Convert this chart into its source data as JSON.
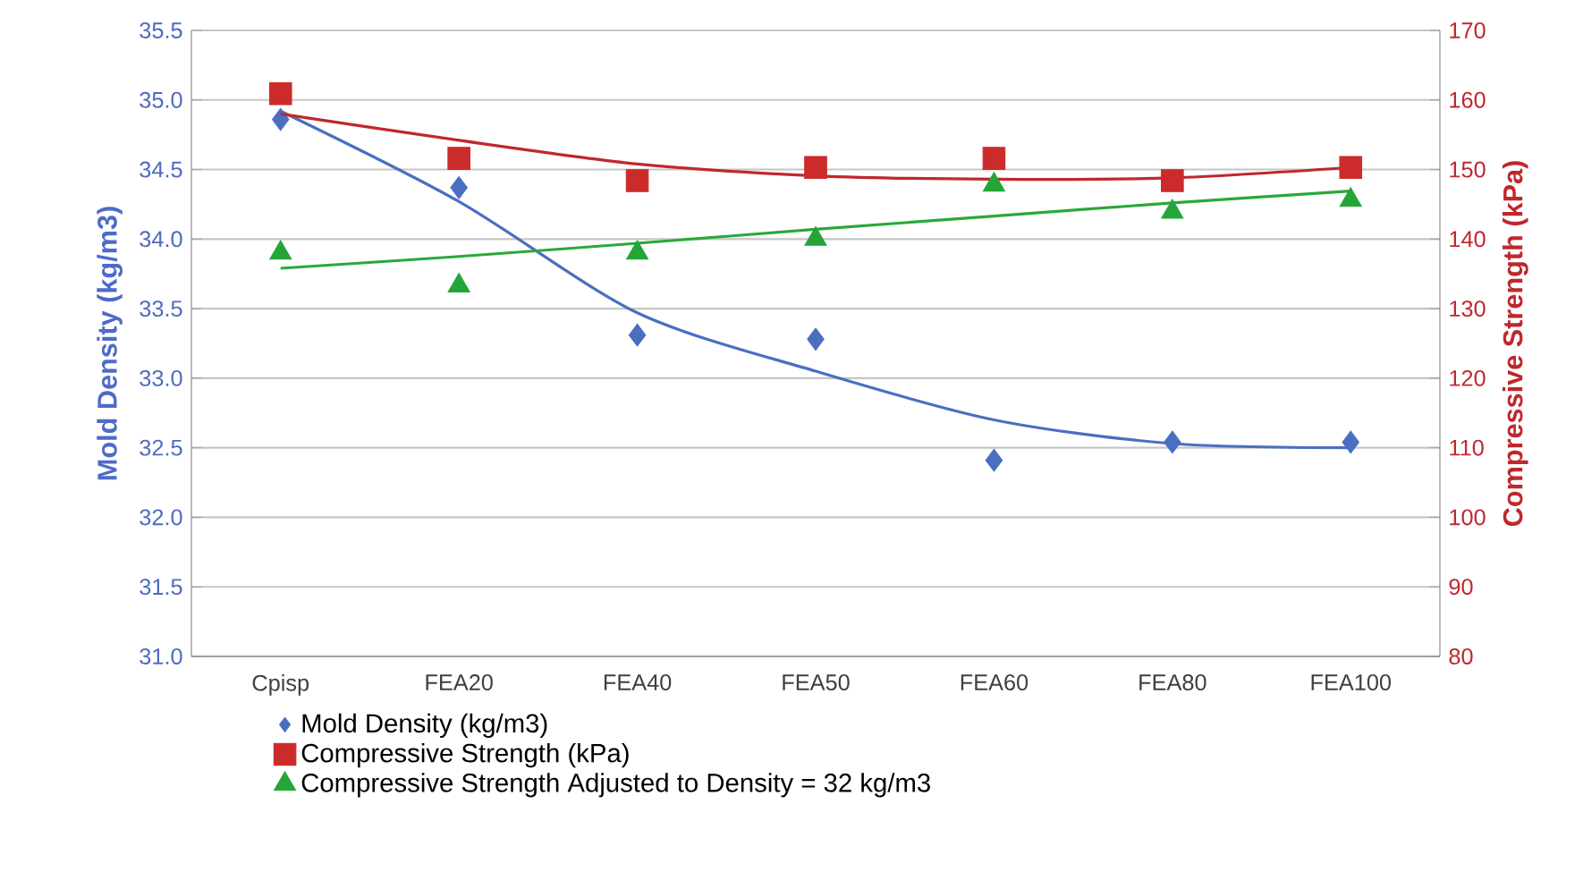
{
  "chart_data": {
    "type": "scatter",
    "xlabel": null,
    "ylabel": "Mold Density (kg/m3)",
    "y2label": "Compressive Strength (kPa)",
    "categories": [
      "Cpisp",
      "FEA20",
      "FEA40",
      "FEA50",
      "FEA60",
      "FEA80",
      "FEA100"
    ],
    "series": [
      {
        "name": "Mold Density (kg/m3)",
        "marker": "diamond",
        "color": "#4a6fc1",
        "values": [
          34.86,
          34.37,
          33.31,
          33.28,
          32.41,
          32.54,
          32.54
        ]
      },
      {
        "name": "Compressive  Strength (kPa)",
        "marker": "square",
        "color": "#cc2b2b",
        "axis": "y2",
        "values": [
          160.9,
          151.6,
          148.4,
          150.3,
          151.6,
          148.4,
          150.3
        ]
      },
      {
        "name": "Compressive Strength Adjusted to Density = 32 kg/m3",
        "marker": "triangle",
        "color": "#25a538",
        "axis": "y2",
        "values": [
          138.0,
          133.3,
          138.0,
          140.0,
          147.8,
          143.9,
          145.6
        ]
      },
      {
        "type": "line",
        "color": "#4a6fc1",
        "values": [
          34.92,
          34.27,
          33.47,
          33.05,
          32.7,
          32.53,
          32.5
        ]
      },
      {
        "type": "line",
        "color": "#c0282d",
        "axis": "y2",
        "values": [
          158.0,
          154.2,
          150.8,
          149.1,
          148.6,
          148.8,
          150.3
        ]
      },
      {
        "type": "line",
        "color": "#2aa83a",
        "axis": "y2",
        "values": [
          135.8,
          137.5,
          139.4,
          141.4,
          143.3,
          145.2,
          146.9
        ]
      }
    ],
    "ylim": [
      31,
      35.5
    ],
    "yticks": [
      {
        "value": 31,
        "label": "31.0"
      },
      {
        "value": 31.5,
        "label": "31.5"
      },
      {
        "value": 32,
        "label": "32.0"
      },
      {
        "value": 32.5,
        "label": "32.5"
      },
      {
        "value": 33,
        "label": "33.0"
      },
      {
        "value": 33.5,
        "label": "33.5"
      },
      {
        "value": 34,
        "label": "34.0"
      },
      {
        "value": 34.5,
        "label": "34.5"
      },
      {
        "value": 35,
        "label": "35.0"
      },
      {
        "value": 35.5,
        "label": "35.5"
      }
    ],
    "y2lim": [
      80,
      170
    ],
    "y2ticks": [
      80,
      90,
      100,
      110,
      120,
      130,
      140,
      150,
      160,
      170
    ],
    "grid": "y",
    "legend": "bottom"
  }
}
